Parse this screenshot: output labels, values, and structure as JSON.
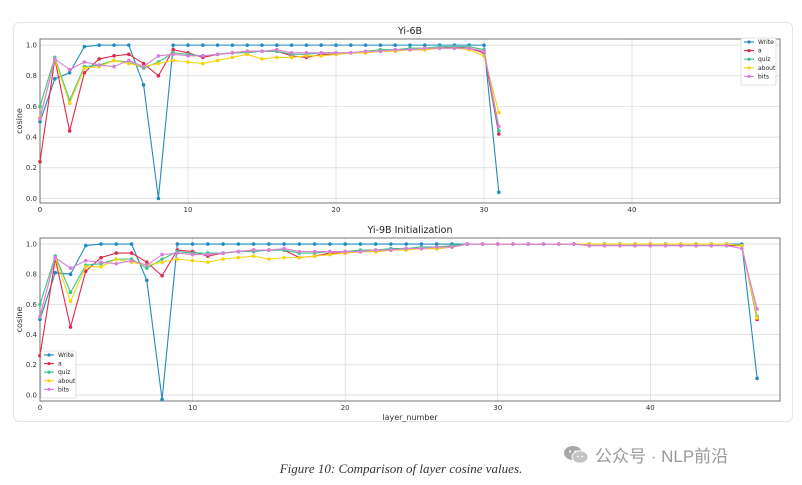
{
  "caption": "Figure 10: Comparison of layer cosine values.",
  "watermark": {
    "text": "公众号 · NLP前沿",
    "icon": "wechat-icon",
    "color": "#9a9a9a"
  },
  "series_colors": {
    "Write": "#1f8bbf",
    "a": "#e0284a",
    "quiz": "#3cc48a",
    "about": "#f5d40f",
    "bits": "#d97fd9"
  },
  "chart_data": [
    {
      "type": "line",
      "title": "Yi-6B",
      "xlabel": "",
      "ylabel": "cosine",
      "xlim": [
        0,
        50
      ],
      "ylim": [
        -0.03,
        1.04
      ],
      "xticks": [
        0,
        10,
        20,
        30,
        40
      ],
      "yticks": [
        0.0,
        0.2,
        0.4,
        0.6,
        0.8,
        1.0
      ],
      "grid": true,
      "legend_position": "top-right",
      "x": [
        0,
        1,
        2,
        3,
        4,
        5,
        6,
        7,
        8,
        9,
        10,
        11,
        12,
        13,
        14,
        15,
        16,
        17,
        18,
        19,
        20,
        21,
        22,
        23,
        24,
        25,
        26,
        27,
        28,
        29,
        30,
        31
      ],
      "series": [
        {
          "name": "Write",
          "values": [
            0.5,
            0.78,
            0.82,
            0.99,
            1.0,
            1.0,
            1.0,
            0.74,
            0.0,
            1.0,
            1.0,
            1.0,
            1.0,
            1.0,
            1.0,
            1.0,
            1.0,
            1.0,
            1.0,
            1.0,
            1.0,
            1.0,
            1.0,
            1.0,
            1.0,
            1.0,
            1.0,
            1.0,
            1.0,
            1.0,
            1.0,
            0.04
          ]
        },
        {
          "name": "a",
          "values": [
            0.24,
            0.91,
            0.44,
            0.82,
            0.91,
            0.93,
            0.94,
            0.88,
            0.8,
            0.97,
            0.95,
            0.92,
            0.94,
            0.95,
            0.96,
            0.96,
            0.96,
            0.93,
            0.92,
            0.94,
            0.94,
            0.95,
            0.95,
            0.96,
            0.97,
            0.97,
            0.97,
            0.98,
            0.99,
            0.98,
            0.95,
            0.42
          ]
        },
        {
          "name": "quiz",
          "values": [
            0.6,
            0.92,
            0.64,
            0.86,
            0.87,
            0.9,
            0.89,
            0.85,
            0.89,
            0.95,
            0.94,
            0.93,
            0.94,
            0.95,
            0.95,
            0.96,
            0.96,
            0.94,
            0.94,
            0.95,
            0.95,
            0.95,
            0.96,
            0.97,
            0.97,
            0.98,
            0.98,
            0.99,
            0.99,
            0.99,
            0.97,
            0.44
          ]
        },
        {
          "name": "about",
          "values": [
            0.53,
            0.91,
            0.62,
            0.85,
            0.86,
            0.9,
            0.88,
            0.86,
            0.88,
            0.9,
            0.89,
            0.88,
            0.9,
            0.92,
            0.94,
            0.91,
            0.92,
            0.92,
            0.93,
            0.93,
            0.94,
            0.95,
            0.95,
            0.96,
            0.96,
            0.97,
            0.97,
            0.98,
            0.98,
            0.97,
            0.93,
            0.56
          ]
        },
        {
          "name": "bits",
          "values": [
            0.52,
            0.91,
            0.84,
            0.89,
            0.87,
            0.86,
            0.9,
            0.86,
            0.93,
            0.94,
            0.93,
            0.93,
            0.94,
            0.95,
            0.96,
            0.96,
            0.97,
            0.95,
            0.95,
            0.95,
            0.95,
            0.95,
            0.96,
            0.96,
            0.97,
            0.97,
            0.98,
            0.98,
            0.98,
            0.98,
            0.96,
            0.47
          ]
        }
      ]
    },
    {
      "type": "line",
      "title": "Yi-9B Initialization",
      "xlabel": "layer_number",
      "ylabel": "cosine",
      "xlim": [
        0,
        48.5
      ],
      "ylim": [
        -0.04,
        1.04
      ],
      "xticks": [
        0,
        10,
        20,
        30,
        40
      ],
      "yticks": [
        0.0,
        0.2,
        0.4,
        0.6,
        0.8,
        1.0
      ],
      "grid": true,
      "legend_position": "lower-left",
      "x": [
        0,
        1,
        2,
        3,
        4,
        5,
        6,
        7,
        8,
        9,
        10,
        11,
        12,
        13,
        14,
        15,
        16,
        17,
        18,
        19,
        20,
        21,
        22,
        23,
        24,
        25,
        26,
        27,
        28,
        29,
        30,
        31,
        32,
        33,
        34,
        35,
        36,
        37,
        38,
        39,
        40,
        41,
        42,
        43,
        44,
        45,
        46,
        47
      ],
      "series": [
        {
          "name": "Write",
          "values": [
            0.5,
            0.81,
            0.8,
            0.99,
            1.0,
            1.0,
            1.0,
            0.76,
            -0.03,
            1.0,
            1.0,
            1.0,
            1.0,
            1.0,
            1.0,
            1.0,
            1.0,
            1.0,
            1.0,
            1.0,
            1.0,
            1.0,
            1.0,
            1.0,
            1.0,
            1.0,
            1.0,
            1.0,
            1.0,
            1.0,
            1.0,
            1.0,
            1.0,
            1.0,
            1.0,
            1.0,
            1.0,
            1.0,
            1.0,
            1.0,
            1.0,
            1.0,
            1.0,
            1.0,
            1.0,
            1.0,
            1.0,
            0.11
          ]
        },
        {
          "name": "a",
          "values": [
            0.26,
            0.9,
            0.45,
            0.82,
            0.91,
            0.94,
            0.94,
            0.88,
            0.79,
            0.96,
            0.95,
            0.92,
            0.94,
            0.95,
            0.96,
            0.96,
            0.96,
            0.91,
            0.92,
            0.94,
            0.94,
            0.95,
            0.95,
            0.96,
            0.97,
            0.97,
            0.97,
            0.98,
            1.0,
            1.0,
            1.0,
            1.0,
            1.0,
            1.0,
            1.0,
            1.0,
            0.99,
            0.99,
            0.99,
            0.99,
            0.99,
            0.99,
            0.99,
            0.99,
            0.99,
            0.99,
            0.99,
            0.5
          ]
        },
        {
          "name": "quiz",
          "values": [
            0.6,
            0.92,
            0.68,
            0.86,
            0.87,
            0.9,
            0.9,
            0.84,
            0.9,
            0.95,
            0.94,
            0.94,
            0.94,
            0.95,
            0.95,
            0.96,
            0.96,
            0.94,
            0.94,
            0.95,
            0.95,
            0.96,
            0.96,
            0.97,
            0.97,
            0.98,
            0.98,
            0.99,
            1.0,
            1.0,
            1.0,
            1.0,
            1.0,
            1.0,
            1.0,
            1.0,
            1.0,
            1.0,
            1.0,
            1.0,
            1.0,
            1.0,
            1.0,
            1.0,
            1.0,
            1.0,
            0.99,
            0.52
          ]
        },
        {
          "name": "about",
          "values": [
            0.52,
            0.91,
            0.62,
            0.85,
            0.85,
            0.9,
            0.88,
            0.86,
            0.88,
            0.9,
            0.89,
            0.88,
            0.9,
            0.91,
            0.92,
            0.9,
            0.91,
            0.91,
            0.92,
            0.93,
            0.94,
            0.95,
            0.95,
            0.96,
            0.96,
            0.97,
            0.97,
            0.98,
            1.0,
            1.0,
            1.0,
            1.0,
            1.0,
            1.0,
            1.0,
            1.0,
            1.0,
            1.0,
            1.0,
            1.0,
            1.0,
            1.0,
            1.0,
            1.0,
            1.0,
            1.0,
            0.99,
            0.51
          ]
        },
        {
          "name": "bits",
          "values": [
            0.52,
            0.91,
            0.84,
            0.89,
            0.88,
            0.87,
            0.89,
            0.86,
            0.93,
            0.94,
            0.93,
            0.93,
            0.94,
            0.95,
            0.96,
            0.96,
            0.97,
            0.95,
            0.95,
            0.95,
            0.95,
            0.95,
            0.96,
            0.96,
            0.97,
            0.97,
            0.98,
            0.98,
            1.0,
            1.0,
            1.0,
            1.0,
            1.0,
            1.0,
            1.0,
            1.0,
            0.99,
            0.99,
            0.99,
            0.99,
            0.99,
            0.99,
            0.99,
            0.99,
            0.99,
            0.99,
            0.97,
            0.57
          ]
        }
      ]
    }
  ]
}
